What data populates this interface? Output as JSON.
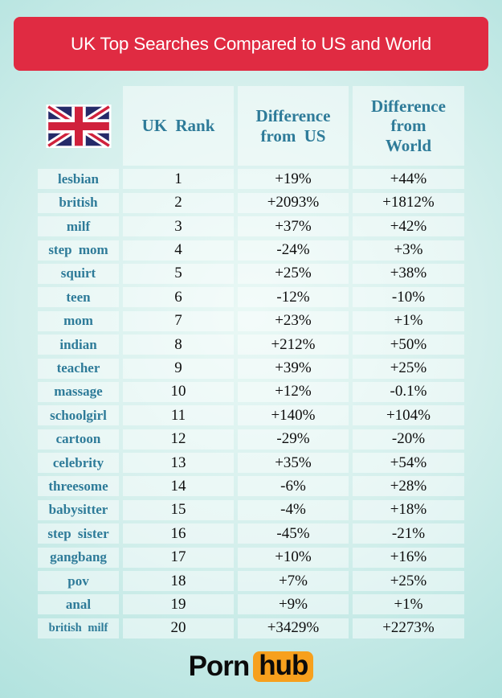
{
  "banner": {
    "title": "UK Top Searches Compared to US and World"
  },
  "chart_data": {
    "type": "table",
    "title": "UK Top Searches Compared to US and World",
    "columns": [
      "Search term",
      "UK Rank",
      "Difference from US",
      "Difference from World"
    ],
    "header_display": {
      "rank": "UK Rank",
      "us": "Difference\nfrom US",
      "world": "Difference\nfrom\nWorld"
    },
    "rows": [
      {
        "term": "lesbian",
        "rank": "1",
        "us": "+19%",
        "world": "+44%"
      },
      {
        "term": "british",
        "rank": "2",
        "us": "+2093%",
        "world": "+1812%"
      },
      {
        "term": "milf",
        "rank": "3",
        "us": "+37%",
        "world": "+42%"
      },
      {
        "term": "step mom",
        "rank": "4",
        "us": "-24%",
        "world": "+3%"
      },
      {
        "term": "squirt",
        "rank": "5",
        "us": "+25%",
        "world": "+38%"
      },
      {
        "term": "teen",
        "rank": "6",
        "us": "-12%",
        "world": "-10%"
      },
      {
        "term": "mom",
        "rank": "7",
        "us": "+23%",
        "world": "+1%"
      },
      {
        "term": "indian",
        "rank": "8",
        "us": "+212%",
        "world": "+50%"
      },
      {
        "term": "teacher",
        "rank": "9",
        "us": "+39%",
        "world": "+25%"
      },
      {
        "term": "massage",
        "rank": "10",
        "us": "+12%",
        "world": "-0.1%"
      },
      {
        "term": "schoolgirl",
        "rank": "11",
        "us": "+140%",
        "world": "+104%"
      },
      {
        "term": "cartoon",
        "rank": "12",
        "us": "-29%",
        "world": "-20%"
      },
      {
        "term": "celebrity",
        "rank": "13",
        "us": "+35%",
        "world": "+54%"
      },
      {
        "term": "threesome",
        "rank": "14",
        "us": "-6%",
        "world": "+28%"
      },
      {
        "term": "babysitter",
        "rank": "15",
        "us": "-4%",
        "world": "+18%"
      },
      {
        "term": "step sister",
        "rank": "16",
        "us": "-45%",
        "world": "-21%"
      },
      {
        "term": "gangbang",
        "rank": "17",
        "us": "+10%",
        "world": "+16%"
      },
      {
        "term": "pov",
        "rank": "18",
        "us": "+7%",
        "world": "+25%"
      },
      {
        "term": "anal",
        "rank": "19",
        "us": "+9%",
        "world": "+1%"
      },
      {
        "term": "british milf",
        "rank": "20",
        "us": "+3429%",
        "world": "+2273%"
      }
    ]
  },
  "footer": {
    "logo_part1": "Porn",
    "logo_part2": "hub"
  },
  "colors": {
    "banner_red": "#e02b42",
    "teal_text": "#2e7b99",
    "logo_orange": "#f7a01d",
    "flag_blue": "#252a69",
    "flag_red": "#d0213c",
    "background_teal": "#9bdad6"
  }
}
